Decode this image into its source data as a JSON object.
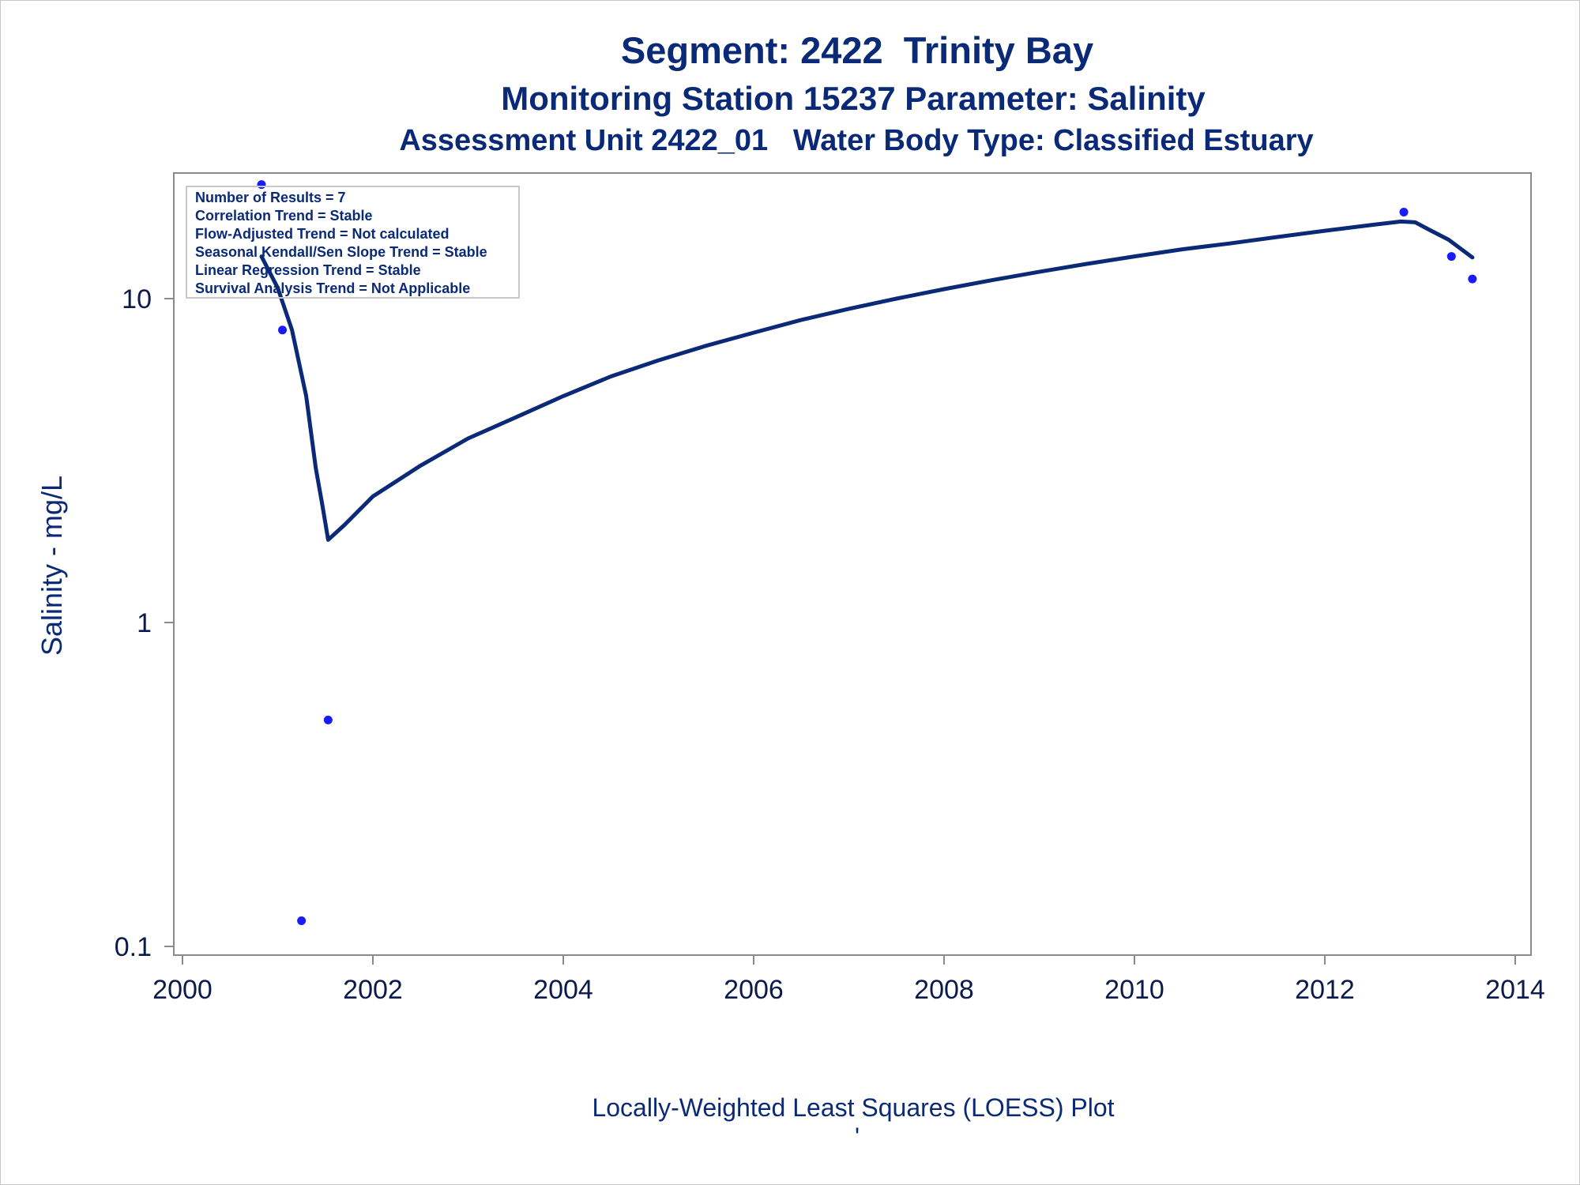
{
  "chart_data": {
    "type": "scatter",
    "title": "Segment: 2422  Trinity Bay",
    "subtitle": "Monitoring Station 15237 Parameter: Salinity",
    "subtitle2": "Assessment Unit 2422_01   Water Body Type: Classified Estuary",
    "xlabel": "",
    "ylabel": "Salinity - mg/L",
    "footnote": "Locally-Weighted Least Squares (LOESS) Plot",
    "footnote2": "'",
    "yscale": "log",
    "xlim": [
      2000,
      2014
    ],
    "ylim": [
      0.1,
      20
    ],
    "x_ticks": [
      "2000",
      "2002",
      "2004",
      "2006",
      "2008",
      "2010",
      "2012",
      "2014"
    ],
    "y_ticks": [
      "0.1",
      "1",
      "10"
    ],
    "grid": false,
    "legend_position": "top-left",
    "stats_box": [
      "Number of Results = 7",
      "Correlation Trend = Stable",
      "Flow-Adjusted Trend = Not calculated",
      "Seasonal Kendall/Sen Slope Trend = Stable",
      "Linear Regression Trend = Stable",
      "Survival Analysis Trend = Not Applicable"
    ],
    "series": [
      {
        "kind": "points",
        "color": "#1a1aff",
        "x": [
          2000.83,
          2001.05,
          2001.25,
          2001.53,
          2012.83,
          2013.33,
          2013.55
        ],
        "y": [
          22.5,
          8.0,
          0.12,
          0.5,
          18.5,
          13.5,
          11.5
        ]
      },
      {
        "kind": "loess",
        "color": "#0a2a78",
        "x": [
          2000.83,
          2001.0,
          2001.15,
          2001.3,
          2001.4,
          2001.47,
          2001.53,
          2001.7,
          2002.0,
          2002.5,
          2003.0,
          2003.5,
          2004.0,
          2004.5,
          2005.0,
          2005.5,
          2006.0,
          2006.5,
          2007.0,
          2007.5,
          2008.0,
          2008.5,
          2009.0,
          2009.5,
          2010.0,
          2010.5,
          2011.0,
          2011.5,
          2012.0,
          2012.5,
          2012.8,
          2012.95,
          2013.1,
          2013.3,
          2013.55
        ],
        "y": [
          13.5,
          10.8,
          8.0,
          5.0,
          3.0,
          2.3,
          1.8,
          2.0,
          2.45,
          3.05,
          3.7,
          4.3,
          5.0,
          5.75,
          6.45,
          7.15,
          7.85,
          8.6,
          9.3,
          10.0,
          10.7,
          11.4,
          12.1,
          12.8,
          13.5,
          14.2,
          14.8,
          15.5,
          16.2,
          16.9,
          17.3,
          17.2,
          16.3,
          15.2,
          13.4
        ]
      }
    ]
  }
}
